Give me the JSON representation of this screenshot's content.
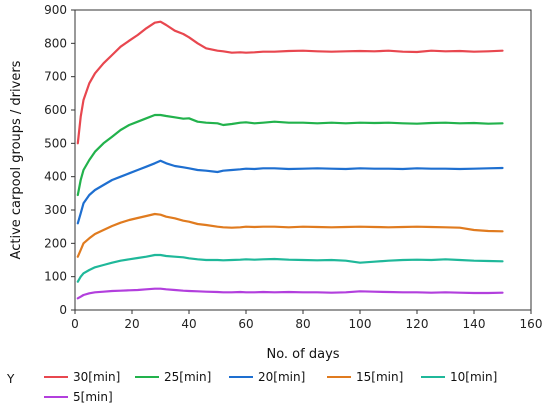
{
  "chart_data": {
    "type": "line",
    "xlabel": "No. of days",
    "ylabel": "Active carpool groups / drivers",
    "xlim": [
      0,
      160
    ],
    "ylim": [
      0,
      900
    ],
    "xticks": [
      0,
      20,
      40,
      60,
      80,
      100,
      120,
      140,
      160
    ],
    "yticks": [
      0,
      100,
      200,
      300,
      400,
      500,
      600,
      700,
      800,
      900
    ],
    "grid": false,
    "legend": {
      "title": "Y",
      "placement": "bottom"
    },
    "series": [
      {
        "name": "30[min]",
        "color": "#e8474f",
        "x": [
          1,
          2,
          3,
          5,
          7,
          10,
          13,
          16,
          19,
          22,
          25,
          28,
          30,
          32,
          35,
          38,
          40,
          43,
          46,
          50,
          52,
          55,
          58,
          60,
          63,
          66,
          70,
          75,
          80,
          85,
          90,
          95,
          100,
          105,
          110,
          115,
          120,
          125,
          130,
          135,
          140,
          145,
          150
        ],
        "y": [
          500,
          580,
          630,
          680,
          710,
          740,
          765,
          790,
          808,
          825,
          845,
          862,
          865,
          855,
          838,
          828,
          818,
          800,
          785,
          778,
          776,
          772,
          773,
          772,
          773,
          775,
          775,
          777,
          778,
          776,
          775,
          776,
          777,
          776,
          778,
          775,
          774,
          778,
          776,
          777,
          775,
          776,
          778
        ]
      },
      {
        "name": "25[min]",
        "color": "#22b24c",
        "x": [
          1,
          2,
          3,
          5,
          7,
          10,
          13,
          16,
          19,
          22,
          25,
          28,
          30,
          32,
          35,
          38,
          40,
          43,
          46,
          50,
          52,
          55,
          58,
          60,
          63,
          66,
          70,
          75,
          80,
          85,
          90,
          95,
          100,
          105,
          110,
          115,
          120,
          125,
          130,
          135,
          140,
          145,
          150
        ],
        "y": [
          345,
          390,
          420,
          450,
          475,
          500,
          520,
          540,
          555,
          565,
          575,
          585,
          585,
          582,
          578,
          574,
          575,
          565,
          562,
          560,
          555,
          558,
          562,
          563,
          560,
          562,
          565,
          562,
          562,
          560,
          562,
          560,
          562,
          561,
          562,
          560,
          559,
          561,
          562,
          560,
          561,
          559,
          560
        ]
      },
      {
        "name": "20[min]",
        "color": "#1e6fd0",
        "x": [
          1,
          2,
          3,
          5,
          7,
          10,
          13,
          16,
          19,
          22,
          25,
          28,
          30,
          32,
          35,
          38,
          40,
          43,
          46,
          50,
          52,
          55,
          58,
          60,
          63,
          66,
          70,
          75,
          80,
          85,
          90,
          95,
          100,
          105,
          110,
          115,
          120,
          125,
          130,
          135,
          140,
          145,
          150
        ],
        "y": [
          260,
          290,
          320,
          345,
          360,
          375,
          390,
          400,
          410,
          420,
          430,
          440,
          448,
          440,
          432,
          428,
          425,
          420,
          418,
          414,
          418,
          420,
          422,
          424,
          423,
          425,
          425,
          423,
          424,
          425,
          424,
          423,
          425,
          424,
          424,
          423,
          425,
          424,
          424,
          423,
          424,
          425,
          426
        ]
      },
      {
        "name": "15[min]",
        "color": "#e07b1f",
        "x": [
          1,
          2,
          3,
          5,
          7,
          10,
          13,
          16,
          19,
          22,
          25,
          28,
          30,
          32,
          35,
          38,
          40,
          43,
          46,
          50,
          52,
          55,
          58,
          60,
          63,
          66,
          70,
          75,
          80,
          85,
          90,
          95,
          100,
          105,
          110,
          115,
          120,
          125,
          130,
          135,
          140,
          145,
          150
        ],
        "y": [
          160,
          180,
          200,
          215,
          228,
          240,
          252,
          262,
          270,
          276,
          282,
          288,
          286,
          280,
          275,
          268,
          265,
          258,
          255,
          250,
          248,
          247,
          248,
          250,
          249,
          250,
          250,
          248,
          250,
          249,
          248,
          249,
          250,
          249,
          248,
          249,
          250,
          249,
          248,
          247,
          240,
          237,
          236
        ]
      },
      {
        "name": "10[min]",
        "color": "#1fb89a",
        "x": [
          1,
          2,
          3,
          5,
          7,
          10,
          13,
          16,
          19,
          22,
          25,
          28,
          30,
          32,
          35,
          38,
          40,
          43,
          46,
          50,
          52,
          55,
          58,
          60,
          63,
          66,
          70,
          75,
          80,
          85,
          90,
          95,
          100,
          105,
          110,
          115,
          120,
          125,
          130,
          135,
          140,
          145,
          150
        ],
        "y": [
          85,
          100,
          110,
          120,
          128,
          135,
          142,
          148,
          152,
          156,
          160,
          165,
          165,
          162,
          160,
          158,
          155,
          152,
          150,
          150,
          149,
          150,
          151,
          152,
          151,
          152,
          153,
          151,
          150,
          149,
          150,
          148,
          142,
          145,
          148,
          150,
          151,
          150,
          152,
          150,
          148,
          147,
          146
        ]
      },
      {
        "name": "5[min]",
        "color": "#b23fdd",
        "x": [
          1,
          2,
          3,
          5,
          7,
          10,
          13,
          16,
          19,
          22,
          25,
          28,
          30,
          32,
          35,
          38,
          40,
          43,
          46,
          50,
          52,
          55,
          58,
          60,
          63,
          66,
          70,
          75,
          80,
          85,
          90,
          95,
          100,
          105,
          110,
          115,
          120,
          125,
          130,
          135,
          140,
          145,
          150
        ],
        "y": [
          35,
          40,
          45,
          50,
          53,
          55,
          57,
          58,
          59,
          60,
          62,
          64,
          64,
          62,
          60,
          58,
          57,
          56,
          55,
          54,
          53,
          53,
          54,
          53,
          53,
          54,
          53,
          54,
          53,
          53,
          52,
          53,
          56,
          55,
          54,
          53,
          53,
          52,
          53,
          52,
          51,
          51,
          52
        ]
      }
    ]
  }
}
